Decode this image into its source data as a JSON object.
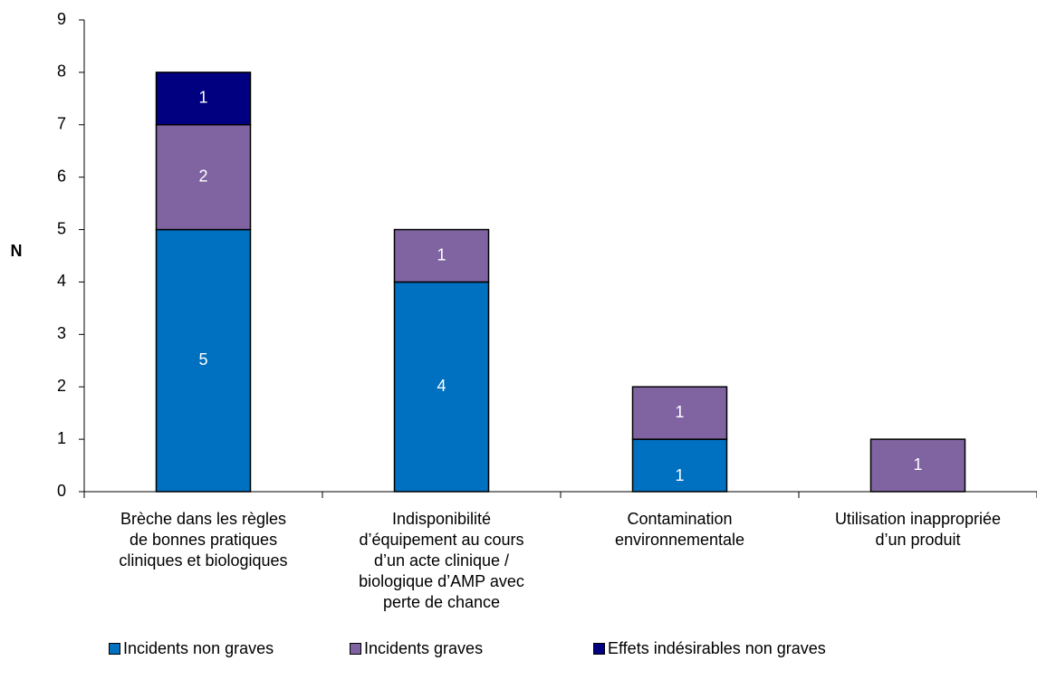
{
  "chart_data": {
    "type": "bar",
    "stacked": true,
    "y_label": "N",
    "categories": [
      "Brèche dans les règles\nde bonnes pratiques\ncliniques et biologiques",
      "Indisponibilité\nd’équipement au cours\nd’un acte clinique /\nbiologique d’AMP avec\nperte de chance",
      "Contamination\nenvironnementale",
      "Utilisation inappropriée\nd’un produit"
    ],
    "series": [
      {
        "name": "Incidents non graves",
        "color": "#0070c0",
        "values": [
          5,
          4,
          1,
          null
        ]
      },
      {
        "name": "Incidents graves",
        "color": "#8064a2",
        "values": [
          2,
          1,
          1,
          1
        ]
      },
      {
        "name": "Effets indésirables non graves",
        "color": "#000080",
        "values": [
          1,
          null,
          null,
          null
        ]
      }
    ],
    "ylim": [
      0,
      9
    ],
    "yticks": [
      0,
      1,
      2,
      3,
      4,
      5,
      6,
      7,
      8,
      9
    ],
    "grid": false,
    "legend": "bottom"
  }
}
